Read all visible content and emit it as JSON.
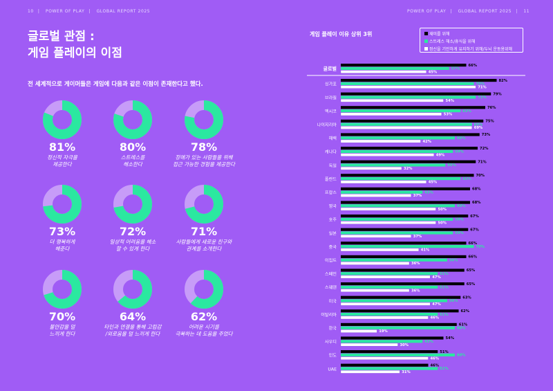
{
  "header": {
    "left": {
      "page": "10",
      "brand": "POWER OF PLAY",
      "report": "GLOBAL REPORT 2025"
    },
    "right": {
      "brand": "POWER OF PLAY",
      "report": "GLOBAL REPORT 2025",
      "page": "11"
    }
  },
  "title": "글로벌 관점 :\n게임 플레이의 이점",
  "subtitle": "전 세계적으로 게이머들은 게임에 다음과 같은 이점이 존재한다고 했다.",
  "stats": [
    {
      "pct": "81%",
      "value": 81,
      "desc": "정신적 자극을\n제공한다"
    },
    {
      "pct": "80%",
      "value": 80,
      "desc": "스트레스를\n해소한다"
    },
    {
      "pct": "78%",
      "value": 78,
      "desc": "장애가 있는 사람들을 위해\n접근 가능한 경험을 제공한다"
    },
    {
      "pct": "73%",
      "value": 73,
      "desc": "더 행복하게\n해준다"
    },
    {
      "pct": "72%",
      "value": 72,
      "desc": "일상적 어려움을 해소\n할 수 있게 한다"
    },
    {
      "pct": "71%",
      "value": 71,
      "desc": "사람들에게 새로운 친구와\n관계를 소개한다"
    },
    {
      "pct": "70%",
      "value": 70,
      "desc": "불안감을 덜\n느끼게 한다"
    },
    {
      "pct": "64%",
      "value": 64,
      "desc": "타인과 연결을 통해 고립감\n/외로움을 덜 느끼게 한다"
    },
    {
      "pct": "62%",
      "value": 62,
      "desc": "어려운 시기를\n극복하는 데 도움을 주었다"
    }
  ],
  "colors": {
    "background": "#a05cf5",
    "donut_fill": "#2be8a0",
    "donut_rest": "#c79cf8",
    "black": "#000000",
    "green": "#2be8a0",
    "white": "#ffffff"
  },
  "chart_data": {
    "type": "bar",
    "title": "게임 플레이 이유 상위 3위",
    "legend_position": "top-right",
    "categories": [
      "글로벌",
      "싱가포",
      "브라질",
      "멕시코",
      "나이지리아",
      "헤렉",
      "캐나다",
      "독일",
      "폴란드",
      "프랑스",
      "영국",
      "호주",
      "일본",
      "중국",
      "이집트",
      "스페인",
      "스웨덴",
      "미국",
      "이탈리아",
      "한국",
      "사우디",
      "인도",
      "UAE"
    ],
    "series": [
      {
        "name": "재미를 위해",
        "color": "#000000",
        "values": [
          66,
          82,
          79,
          76,
          75,
          73,
          72,
          71,
          70,
          68,
          68,
          67,
          67,
          66,
          66,
          65,
          65,
          63,
          62,
          61,
          54,
          51,
          46
        ]
      },
      {
        "name": "스트레스 해소/휴식을 위해",
        "color": "#2be8a0",
        "values": [
          57,
          70,
          71,
          63,
          69,
          60,
          59,
          55,
          63,
          43,
          60,
          59,
          59,
          70,
          56,
          51,
          51,
          56,
          51,
          60,
          43,
          60,
          51
        ]
      },
      {
        "name": "정신을 기민하게 유지하기 위해/두뇌 운동용위해",
        "color": "#ffffff",
        "values": [
          45,
          71,
          54,
          53,
          69,
          42,
          49,
          32,
          45,
          37,
          50,
          50,
          37,
          41,
          36,
          47,
          36,
          47,
          46,
          19,
          30,
          46,
          31
        ]
      }
    ]
  }
}
